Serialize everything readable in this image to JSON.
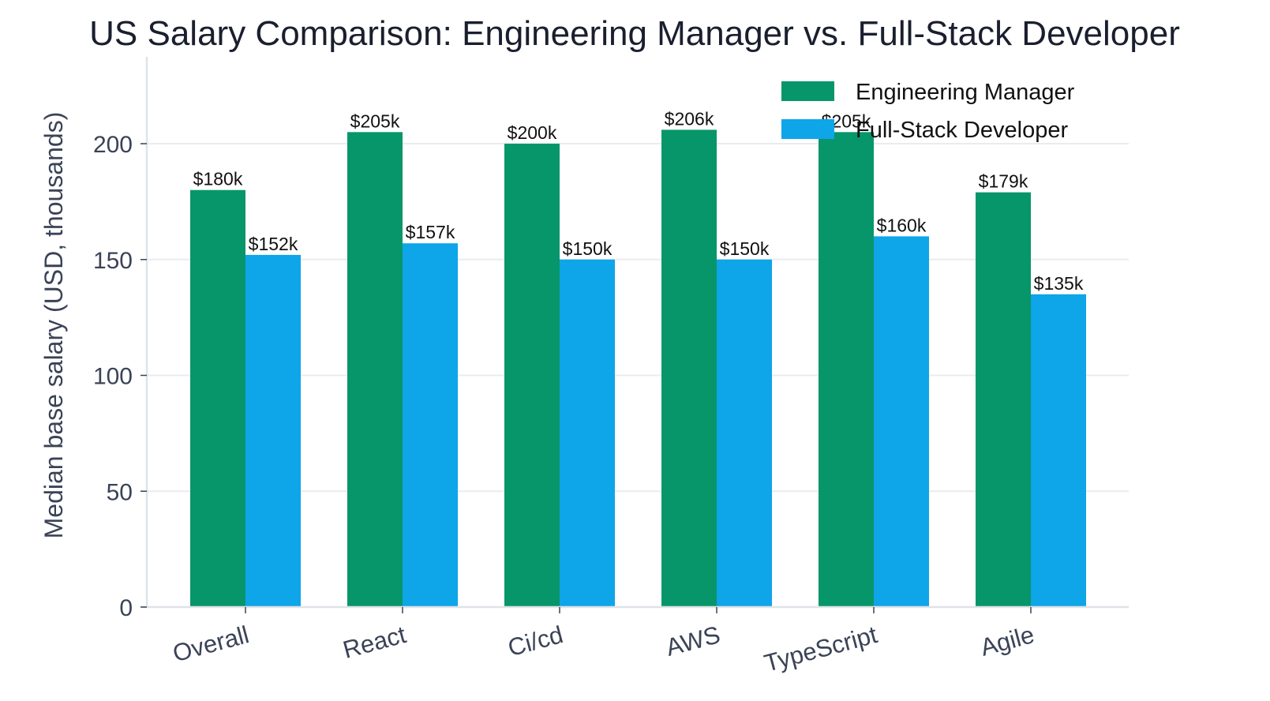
{
  "chart_data": {
    "type": "bar",
    "title": "US Salary Comparison: Engineering Manager vs. Full-Stack Developer",
    "xlabel": "",
    "ylabel": "Median base salary (USD, thousands)",
    "ylim": [
      0,
      237
    ],
    "yticks": [
      0,
      50,
      100,
      150,
      200
    ],
    "grid": true,
    "legend_position": "top-right",
    "categories": [
      "Overall",
      "React",
      "Ci/cd",
      "AWS",
      "TypeScript",
      "Agile"
    ],
    "series": [
      {
        "name": "Engineering Manager",
        "color": "#079669",
        "values": [
          180,
          205,
          200,
          206,
          205,
          179
        ],
        "labels": [
          "$180k",
          "$205k",
          "$200k",
          "$206k",
          "$205k",
          "$179k"
        ]
      },
      {
        "name": "Full-Stack Developer",
        "color": "#0ea5e9",
        "values": [
          152,
          157,
          150,
          150,
          160,
          135
        ],
        "labels": [
          "$152k",
          "$157k",
          "$150k",
          "$150k",
          "$160k",
          "$135k"
        ]
      }
    ]
  }
}
